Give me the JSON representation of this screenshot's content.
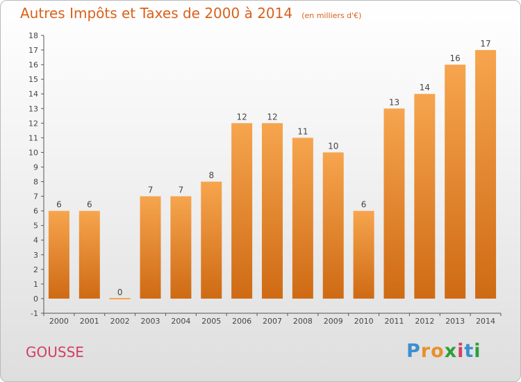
{
  "chart_data": {
    "type": "bar",
    "title": "Autres Impôts et Taxes de 2000 à 2014",
    "subtitle": "(en milliers d'€)",
    "categories": [
      "2000",
      "2001",
      "2002",
      "2003",
      "2004",
      "2005",
      "2006",
      "2007",
      "2008",
      "2009",
      "2010",
      "2011",
      "2012",
      "2013",
      "2014"
    ],
    "values": [
      6,
      6,
      0,
      7,
      7,
      8,
      12,
      12,
      11,
      10,
      6,
      13,
      14,
      16,
      17
    ],
    "ylim": [
      -1,
      18
    ],
    "yticks": [
      -1,
      0,
      1,
      2,
      3,
      4,
      5,
      6,
      7,
      8,
      9,
      10,
      11,
      12,
      13,
      14,
      15,
      16,
      17,
      18
    ],
    "grid": false,
    "bar_color_top": "#f6a54e",
    "bar_color_bottom": "#cf6a14"
  },
  "footer": {
    "commune": "GOUSSE",
    "brand": [
      "P",
      "r",
      "o",
      "x",
      "i",
      "t",
      "i"
    ],
    "brand_colors": [
      "#3b8fd0",
      "#e8902b",
      "#e8902b",
      "#2e9e3a",
      "#d23f64",
      "#3b8fd0",
      "#2e9e3a"
    ]
  },
  "colors": {
    "title": "#d9601a",
    "commune": "#d23f64",
    "axis": "#555555"
  }
}
